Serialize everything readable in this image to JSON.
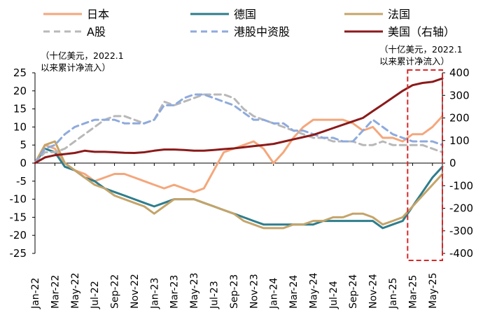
{
  "chart_data": {
    "type": "line",
    "left_unit_note": [
      "（十亿美元，2022.1",
      "以来累计净流入）"
    ],
    "right_unit_note": [
      "（十亿美元，2022.1",
      "以来累计净流入）"
    ],
    "x_ticks": [
      "Jan-22",
      "Mar-22",
      "May-22",
      "Jul-22",
      "Sep-22",
      "Nov-22",
      "Jan-23",
      "Mar-23",
      "May-23",
      "Jul-23",
      "Sep-23",
      "Nov-23",
      "Jan-24",
      "Mar-24",
      "May-24",
      "Jul-24",
      "Sep-24",
      "Nov-24",
      "Jan-25",
      "Mar-25",
      "May-25"
    ],
    "y_left": {
      "min": -25,
      "max": 25,
      "ticks": [
        "25",
        "20",
        "15",
        "10",
        "5",
        "0",
        "-5",
        "-10",
        "-15",
        "-20",
        "-25"
      ]
    },
    "y_right": {
      "min": -400,
      "max": 400,
      "ticks": [
        "400",
        "300",
        "200",
        "100",
        "0",
        "-100",
        "-200",
        "-300",
        "-400"
      ]
    },
    "x_months": [
      0,
      41
    ],
    "highlight": {
      "x_from": 37.5,
      "x_to": 41
    },
    "series": [
      {
        "name": "日本",
        "axis": "left",
        "color": "#F4A77C",
        "dash": false,
        "points": [
          [
            0,
            0
          ],
          [
            1,
            5
          ],
          [
            2,
            4
          ],
          [
            3,
            0
          ],
          [
            4,
            -2
          ],
          [
            5,
            -3
          ],
          [
            6,
            -5
          ],
          [
            7,
            -4
          ],
          [
            8,
            -3
          ],
          [
            9,
            -3
          ],
          [
            10,
            -4
          ],
          [
            11,
            -5
          ],
          [
            12,
            -6
          ],
          [
            13,
            -7
          ],
          [
            14,
            -6
          ],
          [
            15,
            -7
          ],
          [
            16,
            -8
          ],
          [
            17,
            -7
          ],
          [
            18,
            -2
          ],
          [
            19,
            3
          ],
          [
            20,
            4
          ],
          [
            21,
            5
          ],
          [
            22,
            6
          ],
          [
            23,
            4
          ],
          [
            24,
            0
          ],
          [
            25,
            3
          ],
          [
            26,
            7
          ],
          [
            27,
            10
          ],
          [
            28,
            12
          ],
          [
            29,
            12
          ],
          [
            30,
            12
          ],
          [
            31,
            12
          ],
          [
            32,
            11
          ],
          [
            33,
            9
          ],
          [
            34,
            10
          ],
          [
            35,
            7
          ],
          [
            36,
            7
          ],
          [
            37,
            6
          ],
          [
            38,
            8
          ],
          [
            39,
            8
          ],
          [
            40,
            10
          ],
          [
            41,
            13
          ]
        ]
      },
      {
        "name": "德国",
        "axis": "left",
        "color": "#2E7D8C",
        "dash": false,
        "points": [
          [
            0,
            0
          ],
          [
            1,
            4
          ],
          [
            2,
            3
          ],
          [
            3,
            -1
          ],
          [
            4,
            -2
          ],
          [
            5,
            -4
          ],
          [
            6,
            -5
          ],
          [
            7,
            -7
          ],
          [
            8,
            -8
          ],
          [
            9,
            -9
          ],
          [
            10,
            -10
          ],
          [
            11,
            -11
          ],
          [
            12,
            -12
          ],
          [
            13,
            -11
          ],
          [
            14,
            -10
          ],
          [
            15,
            -10
          ],
          [
            16,
            -10
          ],
          [
            17,
            -11
          ],
          [
            18,
            -12
          ],
          [
            19,
            -13
          ],
          [
            20,
            -14
          ],
          [
            21,
            -15
          ],
          [
            22,
            -16
          ],
          [
            23,
            -17
          ],
          [
            24,
            -17
          ],
          [
            25,
            -17
          ],
          [
            26,
            -17
          ],
          [
            27,
            -17
          ],
          [
            28,
            -17
          ],
          [
            29,
            -16
          ],
          [
            30,
            -16
          ],
          [
            31,
            -16
          ],
          [
            32,
            -16
          ],
          [
            33,
            -16
          ],
          [
            34,
            -16
          ],
          [
            35,
            -18
          ],
          [
            36,
            -17
          ],
          [
            37,
            -16
          ],
          [
            38,
            -12
          ],
          [
            39,
            -8
          ],
          [
            40,
            -4
          ],
          [
            41,
            -1
          ]
        ]
      },
      {
        "name": "法国",
        "axis": "left",
        "color": "#C4A46A",
        "dash": false,
        "points": [
          [
            0,
            0
          ],
          [
            1,
            5
          ],
          [
            2,
            6
          ],
          [
            3,
            0
          ],
          [
            4,
            -2
          ],
          [
            5,
            -4
          ],
          [
            6,
            -6
          ],
          [
            7,
            -7
          ],
          [
            8,
            -9
          ],
          [
            9,
            -10
          ],
          [
            10,
            -11
          ],
          [
            11,
            -12
          ],
          [
            12,
            -14
          ],
          [
            13,
            -12
          ],
          [
            14,
            -10
          ],
          [
            15,
            -10
          ],
          [
            16,
            -10
          ],
          [
            17,
            -11
          ],
          [
            18,
            -12
          ],
          [
            19,
            -13
          ],
          [
            20,
            -14
          ],
          [
            21,
            -16
          ],
          [
            22,
            -17
          ],
          [
            23,
            -18
          ],
          [
            24,
            -18
          ],
          [
            25,
            -18
          ],
          [
            26,
            -17
          ],
          [
            27,
            -17
          ],
          [
            28,
            -16
          ],
          [
            29,
            -16
          ],
          [
            30,
            -15
          ],
          [
            31,
            -15
          ],
          [
            32,
            -14
          ],
          [
            33,
            -14
          ],
          [
            34,
            -15
          ],
          [
            35,
            -17
          ],
          [
            36,
            -16
          ],
          [
            37,
            -15
          ],
          [
            38,
            -12
          ],
          [
            39,
            -9
          ],
          [
            40,
            -6
          ],
          [
            41,
            -3
          ]
        ]
      },
      {
        "name": "A股",
        "axis": "left",
        "color": "#B8B8B8",
        "dash": true,
        "points": [
          [
            0,
            0
          ],
          [
            1,
            3
          ],
          [
            2,
            3
          ],
          [
            3,
            4
          ],
          [
            4,
            6
          ],
          [
            5,
            8
          ],
          [
            6,
            10
          ],
          [
            7,
            12
          ],
          [
            8,
            13
          ],
          [
            9,
            13
          ],
          [
            10,
            12
          ],
          [
            11,
            11
          ],
          [
            12,
            12
          ],
          [
            13,
            17
          ],
          [
            14,
            16
          ],
          [
            15,
            17
          ],
          [
            16,
            18
          ],
          [
            17,
            19
          ],
          [
            18,
            19
          ],
          [
            19,
            19
          ],
          [
            20,
            18
          ],
          [
            21,
            15
          ],
          [
            22,
            13
          ],
          [
            23,
            12
          ],
          [
            24,
            11
          ],
          [
            25,
            10
          ],
          [
            26,
            9
          ],
          [
            27,
            8
          ],
          [
            28,
            7
          ],
          [
            29,
            7
          ],
          [
            30,
            6
          ],
          [
            31,
            6
          ],
          [
            32,
            6
          ],
          [
            33,
            5
          ],
          [
            34,
            5
          ],
          [
            35,
            6
          ],
          [
            36,
            5
          ],
          [
            37,
            5
          ],
          [
            38,
            5
          ],
          [
            39,
            5
          ],
          [
            40,
            4
          ],
          [
            41,
            3
          ]
        ]
      },
      {
        "name": "港股中资股",
        "axis": "left",
        "color": "#8FAADC",
        "dash": true,
        "points": [
          [
            0,
            0
          ],
          [
            1,
            4
          ],
          [
            2,
            5
          ],
          [
            3,
            8
          ],
          [
            4,
            10
          ],
          [
            5,
            11
          ],
          [
            6,
            12
          ],
          [
            7,
            12
          ],
          [
            8,
            12
          ],
          [
            9,
            11
          ],
          [
            10,
            11
          ],
          [
            11,
            11
          ],
          [
            12,
            12
          ],
          [
            13,
            16
          ],
          [
            14,
            16
          ],
          [
            15,
            18
          ],
          [
            16,
            19
          ],
          [
            17,
            19
          ],
          [
            18,
            18
          ],
          [
            19,
            17
          ],
          [
            20,
            16
          ],
          [
            21,
            14
          ],
          [
            22,
            12
          ],
          [
            23,
            12
          ],
          [
            24,
            11
          ],
          [
            25,
            11
          ],
          [
            26,
            9
          ],
          [
            27,
            9
          ],
          [
            28,
            8
          ],
          [
            29,
            7
          ],
          [
            30,
            7
          ],
          [
            31,
            6
          ],
          [
            32,
            6
          ],
          [
            33,
            9
          ],
          [
            34,
            12
          ],
          [
            35,
            10
          ],
          [
            36,
            8
          ],
          [
            37,
            7
          ],
          [
            38,
            6
          ],
          [
            39,
            6
          ],
          [
            40,
            6
          ],
          [
            41,
            5
          ]
        ]
      },
      {
        "name": "美国（右轴）",
        "axis": "right",
        "color": "#8B1A1A",
        "dash": false,
        "points": [
          [
            0,
            0
          ],
          [
            1,
            25
          ],
          [
            2,
            35
          ],
          [
            3,
            40
          ],
          [
            4,
            45
          ],
          [
            5,
            55
          ],
          [
            6,
            50
          ],
          [
            7,
            50
          ],
          [
            8,
            48
          ],
          [
            9,
            46
          ],
          [
            10,
            45
          ],
          [
            11,
            48
          ],
          [
            12,
            55
          ],
          [
            13,
            60
          ],
          [
            14,
            60
          ],
          [
            15,
            58
          ],
          [
            16,
            55
          ],
          [
            17,
            55
          ],
          [
            18,
            58
          ],
          [
            19,
            62
          ],
          [
            20,
            65
          ],
          [
            21,
            70
          ],
          [
            22,
            75
          ],
          [
            23,
            80
          ],
          [
            24,
            85
          ],
          [
            25,
            95
          ],
          [
            26,
            105
          ],
          [
            27,
            115
          ],
          [
            28,
            125
          ],
          [
            29,
            140
          ],
          [
            30,
            155
          ],
          [
            31,
            170
          ],
          [
            32,
            185
          ],
          [
            33,
            200
          ],
          [
            34,
            230
          ],
          [
            35,
            260
          ],
          [
            36,
            290
          ],
          [
            37,
            320
          ],
          [
            38,
            345
          ],
          [
            39,
            355
          ],
          [
            40,
            360
          ],
          [
            41,
            375
          ]
        ]
      }
    ]
  }
}
